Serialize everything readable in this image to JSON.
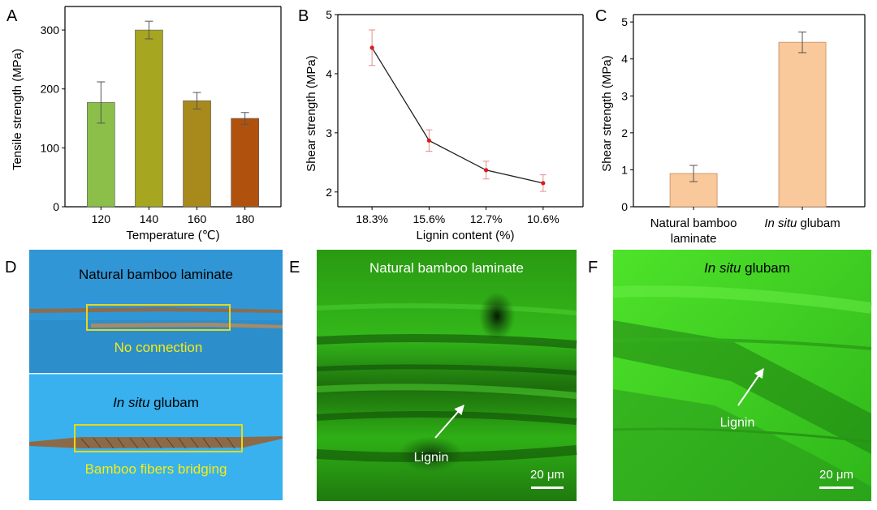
{
  "chart_data": [
    {
      "panel": "A",
      "type": "bar",
      "categories": [
        "120",
        "140",
        "160",
        "180"
      ],
      "values": [
        177,
        300,
        180,
        150
      ],
      "errors": [
        35,
        15,
        14,
        10
      ],
      "colors": [
        "#8bbf4a",
        "#a6a620",
        "#a88a1c",
        "#b0520e"
      ],
      "xlabel": "Temperature (℃)",
      "ylabel": "Tensile  strength (MPa)",
      "ylim": [
        0,
        340
      ],
      "yticks": [
        0,
        100,
        200,
        300
      ]
    },
    {
      "panel": "B",
      "type": "line",
      "categories": [
        "18.3%",
        "15.6%",
        "12.7%",
        "10.6%"
      ],
      "values": [
        4.44,
        2.87,
        2.37,
        2.15
      ],
      "errors": [
        0.3,
        0.18,
        0.15,
        0.14
      ],
      "xlabel": "Lignin content (%)",
      "ylabel": "Shear  strength (MPa)",
      "ylim": [
        1.75,
        5.0
      ],
      "yticks": [
        2,
        3,
        4,
        5
      ]
    },
    {
      "panel": "C",
      "type": "bar",
      "categories": [
        "Natural bamboo laminate",
        "In situ glubam"
      ],
      "category_lines": [
        [
          "Natural bamboo",
          "laminate"
        ],
        [
          "In situ glubam"
        ]
      ],
      "values": [
        0.9,
        4.45
      ],
      "errors": [
        0.22,
        0.28
      ],
      "color": "#f9c99b",
      "ylabel": "Shear strength (MPa)",
      "ylim": [
        0,
        5.2
      ],
      "yticks": [
        0,
        1,
        2,
        3,
        4,
        5
      ]
    }
  ],
  "panels": {
    "A": "A",
    "B": "B",
    "C": "C",
    "D": "D",
    "E": "E",
    "F": "F"
  },
  "photo_d": {
    "top_title": "Natural bamboo laminate",
    "top_caption": "No connection",
    "bottom_title_italic": "In situ",
    "bottom_title_rest": " glubam",
    "bottom_caption": "Bamboo fibers bridging"
  },
  "photo_e": {
    "title": "Natural bamboo laminate",
    "label": "Lignin",
    "scale": "20 μm"
  },
  "photo_f": {
    "title_italic": "In situ",
    "title_rest": " glubam",
    "label": "Lignin",
    "scale": "20 μm"
  },
  "colors": {
    "blue_bg": "#2f95d8",
    "caption_yellow": "#f5ec12",
    "frame_yellow": "#e8d81a",
    "micro_dark": "#0d3a08",
    "micro_bright": "#35c41c",
    "line_point": "#e01818"
  }
}
